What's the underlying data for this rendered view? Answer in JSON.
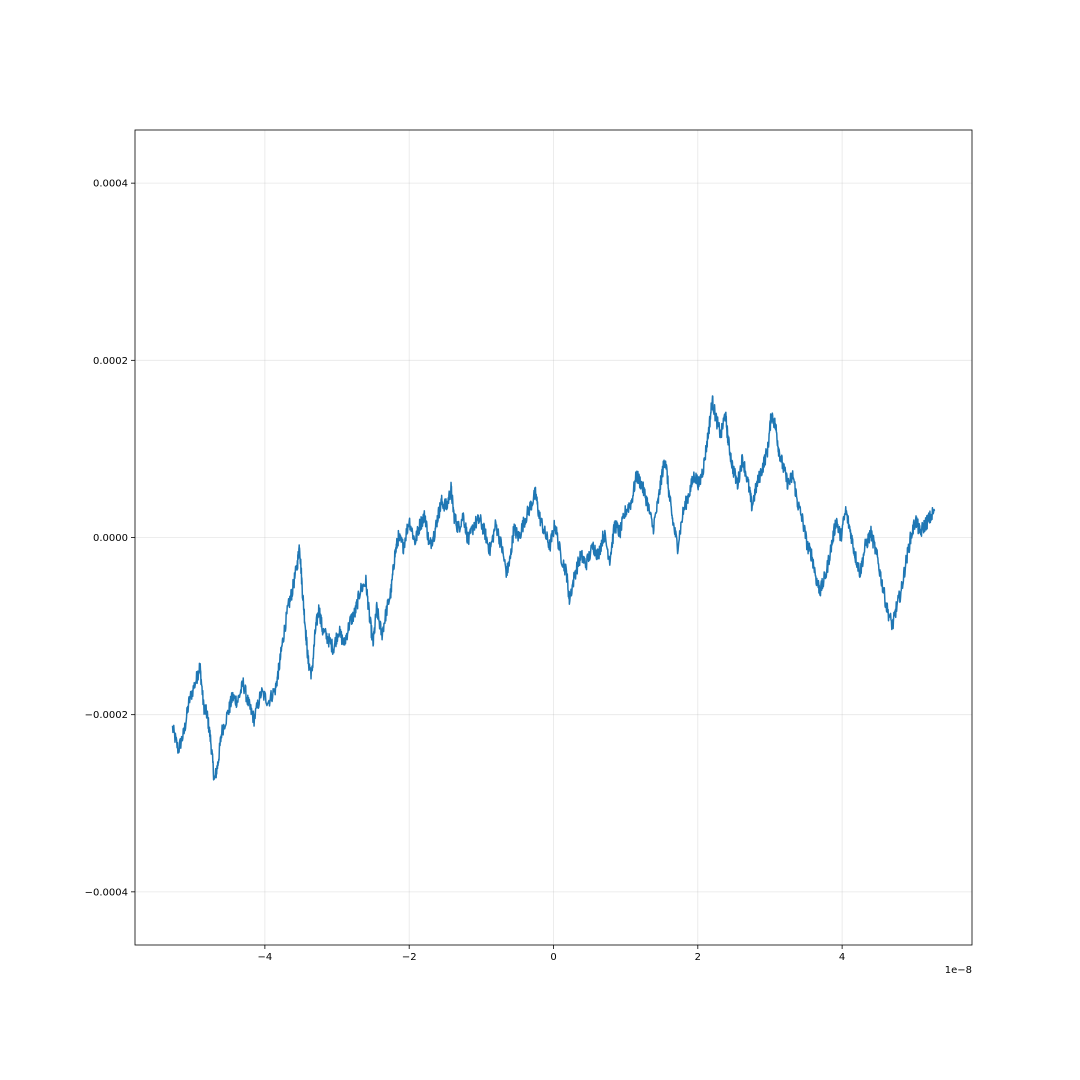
{
  "chart_data": {
    "type": "line",
    "title": "",
    "xlabel": "",
    "ylabel": "",
    "x_offset_label": "1e−8",
    "xlim": [
      -5.8e-08,
      5.8e-08
    ],
    "ylim": [
      -0.00046,
      0.00046
    ],
    "grid": true,
    "x_ticks": [
      {
        "value": -4e-08,
        "label": "−4"
      },
      {
        "value": -2e-08,
        "label": "−2"
      },
      {
        "value": 0,
        "label": "0"
      },
      {
        "value": 2e-08,
        "label": "2"
      },
      {
        "value": 4e-08,
        "label": "4"
      }
    ],
    "y_ticks": [
      {
        "value": -0.0004,
        "label": "−0.0004"
      },
      {
        "value": -0.0002,
        "label": "−0.0002"
      },
      {
        "value": 0,
        "label": "0.0000"
      },
      {
        "value": 0.0002,
        "label": "0.0002"
      },
      {
        "value": 0.0004,
        "label": "0.0004"
      }
    ],
    "series": [
      {
        "color": "#1f77b4",
        "points": [
          [
            -5.28e-08,
            -0.000215
          ],
          [
            -5.2e-08,
            -0.00024
          ],
          [
            -5.12e-08,
            -0.00022
          ],
          [
            -5.05e-08,
            -0.000185
          ],
          [
            -4.95e-08,
            -0.00016
          ],
          [
            -4.9e-08,
            -0.000145
          ],
          [
            -4.85e-08,
            -0.00019
          ],
          [
            -4.8e-08,
            -0.0002
          ],
          [
            -4.75e-08,
            -0.00023
          ],
          [
            -4.7e-08,
            -0.000275
          ],
          [
            -4.65e-08,
            -0.000255
          ],
          [
            -4.6e-08,
            -0.00022
          ],
          [
            -4.5e-08,
            -0.000195
          ],
          [
            -4.45e-08,
            -0.00018
          ],
          [
            -4.38e-08,
            -0.000185
          ],
          [
            -4.3e-08,
            -0.000165
          ],
          [
            -4.22e-08,
            -0.00019
          ],
          [
            -4.15e-08,
            -0.000205
          ],
          [
            -4.05e-08,
            -0.000175
          ],
          [
            -3.95e-08,
            -0.000185
          ],
          [
            -3.85e-08,
            -0.00017
          ],
          [
            -3.8e-08,
            -0.000145
          ],
          [
            -3.75e-08,
            -0.000115
          ],
          [
            -3.68e-08,
            -8e-05
          ],
          [
            -3.62e-08,
            -6e-05
          ],
          [
            -3.55e-08,
            -3e-05
          ],
          [
            -3.52e-08,
            -8e-06
          ],
          [
            -3.48e-08,
            -6e-05
          ],
          [
            -3.44e-08,
            -0.0001
          ],
          [
            -3.4e-08,
            -0.00014
          ],
          [
            -3.35e-08,
            -0.000155
          ],
          [
            -3.3e-08,
            -0.000105
          ],
          [
            -3.25e-08,
            -8e-05
          ],
          [
            -3.2e-08,
            -0.000105
          ],
          [
            -3.12e-08,
            -0.000115
          ],
          [
            -3.05e-08,
            -0.000125
          ],
          [
            -2.98e-08,
            -0.000105
          ],
          [
            -2.9e-08,
            -0.00012
          ],
          [
            -2.82e-08,
            -9.5e-05
          ],
          [
            -2.75e-08,
            -8.5e-05
          ],
          [
            -2.68e-08,
            -6e-05
          ],
          [
            -2.6e-08,
            -5e-05
          ],
          [
            -2.55e-08,
            -9e-05
          ],
          [
            -2.5e-08,
            -0.00012
          ],
          [
            -2.45e-08,
            -8e-05
          ],
          [
            -2.38e-08,
            -0.00011
          ],
          [
            -2.32e-08,
            -8.5e-05
          ],
          [
            -2.25e-08,
            -6e-05
          ],
          [
            -2.2e-08,
            -2e-05
          ],
          [
            -2.15e-08,
            0.0
          ],
          [
            -2.08e-08,
            -1e-05
          ],
          [
            -2e-08,
            2e-05
          ],
          [
            -1.92e-08,
            -5e-06
          ],
          [
            -1.85e-08,
            1.5e-05
          ],
          [
            -1.78e-08,
            2.5e-05
          ],
          [
            -1.72e-08,
            -1e-05
          ],
          [
            -1.65e-08,
            5e-06
          ],
          [
            -1.6e-08,
            2.5e-05
          ],
          [
            -1.55e-08,
            4e-05
          ],
          [
            -1.48e-08,
            3.5e-05
          ],
          [
            -1.42e-08,
            5.5e-05
          ],
          [
            -1.38e-08,
            2.5e-05
          ],
          [
            -1.32e-08,
            1e-05
          ],
          [
            -1.25e-08,
            2.5e-05
          ],
          [
            -1.18e-08,
            -5e-06
          ],
          [
            -1.1e-08,
            1.5e-05
          ],
          [
            -1.02e-08,
            2e-05
          ],
          [
            -9.5e-09,
            5e-06
          ],
          [
            -8.8e-09,
            -1.5e-05
          ],
          [
            -8e-09,
            1.5e-05
          ],
          [
            -7.2e-09,
            -1e-05
          ],
          [
            -6.5e-09,
            -4e-05
          ],
          [
            -6e-09,
            -2.5e-05
          ],
          [
            -5.5e-09,
            1e-05
          ],
          [
            -4.8e-09,
            0.0
          ],
          [
            -4e-09,
            2e-05
          ],
          [
            -3.2e-09,
            3.5e-05
          ],
          [
            -2.5e-09,
            5e-05
          ],
          [
            -2e-09,
            2.5e-05
          ],
          [
            -1.2e-09,
            5e-06
          ],
          [
            -5e-10,
            -1e-05
          ],
          [
            2e-10,
            1.5e-05
          ],
          [
            1e-09,
            -2e-05
          ],
          [
            1.8e-09,
            -4e-05
          ],
          [
            2.2e-09,
            -7e-05
          ],
          [
            3e-09,
            -4e-05
          ],
          [
            3.8e-09,
            -2e-05
          ],
          [
            4.5e-09,
            -3e-05
          ],
          [
            5.5e-09,
            -1e-05
          ],
          [
            6.2e-09,
            -2e-05
          ],
          [
            7e-09,
            5e-06
          ],
          [
            7.8e-09,
            -2.5e-05
          ],
          [
            8.5e-09,
            1.5e-05
          ],
          [
            9.2e-09,
            5e-06
          ],
          [
            1e-08,
            3e-05
          ],
          [
            1.08e-08,
            4e-05
          ],
          [
            1.15e-08,
            7e-05
          ],
          [
            1.22e-08,
            6e-05
          ],
          [
            1.3e-08,
            4e-05
          ],
          [
            1.38e-08,
            1e-05
          ],
          [
            1.45e-08,
            4e-05
          ],
          [
            1.5e-08,
            7e-05
          ],
          [
            1.55e-08,
            9e-05
          ],
          [
            1.6e-08,
            5e-05
          ],
          [
            1.65e-08,
            2e-05
          ],
          [
            1.72e-08,
            -1e-05
          ],
          [
            1.8e-08,
            3e-05
          ],
          [
            1.88e-08,
            5e-05
          ],
          [
            1.95e-08,
            7e-05
          ],
          [
            2.02e-08,
            6e-05
          ],
          [
            2.08e-08,
            8e-05
          ],
          [
            2.15e-08,
            0.00012
          ],
          [
            2.2e-08,
            0.000155
          ],
          [
            2.25e-08,
            0.000135
          ],
          [
            2.32e-08,
            0.000115
          ],
          [
            2.38e-08,
            0.00014
          ],
          [
            2.42e-08,
            0.00011
          ],
          [
            2.48e-08,
            8e-05
          ],
          [
            2.55e-08,
            6e-05
          ],
          [
            2.62e-08,
            9e-05
          ],
          [
            2.7e-08,
            6e-05
          ],
          [
            2.75e-08,
            3.5e-05
          ],
          [
            2.82e-08,
            6e-05
          ],
          [
            2.9e-08,
            8e-05
          ],
          [
            2.97e-08,
            0.0001
          ],
          [
            3.02e-08,
            0.00014
          ],
          [
            3.08e-08,
            0.000125
          ],
          [
            3.12e-08,
            0.0001
          ],
          [
            3.18e-08,
            8e-05
          ],
          [
            3.25e-08,
            6e-05
          ],
          [
            3.32e-08,
            7e-05
          ],
          [
            3.38e-08,
            4e-05
          ],
          [
            3.45e-08,
            2e-05
          ],
          [
            3.52e-08,
            -1e-05
          ],
          [
            3.58e-08,
            -2e-05
          ],
          [
            3.65e-08,
            -5e-05
          ],
          [
            3.7e-08,
            -6e-05
          ],
          [
            3.78e-08,
            -4e-05
          ],
          [
            3.85e-08,
            -1e-05
          ],
          [
            3.92e-08,
            2e-05
          ],
          [
            3.98e-08,
            0.0
          ],
          [
            4.05e-08,
            3e-05
          ],
          [
            4.12e-08,
            5e-06
          ],
          [
            4.18e-08,
            -2e-05
          ],
          [
            4.25e-08,
            -4e-05
          ],
          [
            4.32e-08,
            -1e-05
          ],
          [
            4.4e-08,
            5e-06
          ],
          [
            4.48e-08,
            -2e-05
          ],
          [
            4.55e-08,
            -5e-05
          ],
          [
            4.62e-08,
            -8e-05
          ],
          [
            4.7e-08,
            -0.0001
          ],
          [
            4.75e-08,
            -8e-05
          ],
          [
            4.82e-08,
            -6e-05
          ],
          [
            4.88e-08,
            -3e-05
          ],
          [
            4.95e-08,
            0.0
          ],
          [
            5.02e-08,
            2e-05
          ],
          [
            5.08e-08,
            5e-06
          ],
          [
            5.15e-08,
            1.5e-05
          ],
          [
            5.2e-08,
            2e-05
          ],
          [
            5.28e-08,
            3e-05
          ]
        ]
      }
    ]
  }
}
